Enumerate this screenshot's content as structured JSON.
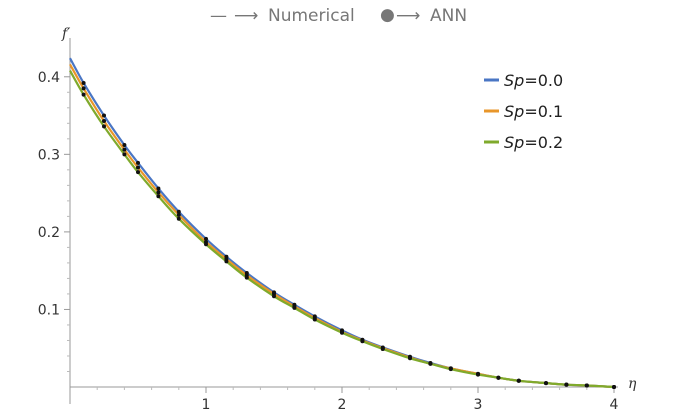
{
  "header": {
    "line_legend_label": "Numerical",
    "dot_legend_label": "ANN",
    "arrow_symbol": "⟶",
    "line_symbol": "—",
    "dot_symbol": "●"
  },
  "chart_data": {
    "type": "line",
    "xlabel": "η",
    "ylabel": "f′",
    "xlim": [
      0,
      4
    ],
    "ylim": [
      0,
      0.45
    ],
    "x_ticks": [
      1,
      2,
      3,
      4
    ],
    "y_ticks": [
      0.1,
      0.2,
      0.3,
      0.4
    ],
    "legend_position": "top-right",
    "grid": false,
    "x": [
      0,
      0.1,
      0.25,
      0.4,
      0.5,
      0.65,
      0.8,
      1.0,
      1.15,
      1.3,
      1.5,
      1.65,
      1.8,
      2.0,
      2.15,
      2.3,
      2.5,
      2.65,
      2.8,
      3.0,
      3.15,
      3.3,
      3.5,
      3.65,
      3.8,
      4.0
    ],
    "series": [
      {
        "legend_prefix": "Sp",
        "legend_suffix": "=0.0",
        "color": "#4a76c4",
        "values": [
          0.424,
          0.392,
          0.35,
          0.312,
          0.289,
          0.256,
          0.226,
          0.191,
          0.168,
          0.147,
          0.122,
          0.106,
          0.091,
          0.073,
          0.061,
          0.051,
          0.039,
          0.031,
          0.024,
          0.017,
          0.012,
          0.008,
          0.005,
          0.003,
          0.002,
          0.0
        ]
      },
      {
        "legend_prefix": "Sp",
        "legend_suffix": "=0.1",
        "color": "#e8962a",
        "values": [
          0.416,
          0.385,
          0.343,
          0.306,
          0.283,
          0.251,
          0.222,
          0.187,
          0.165,
          0.144,
          0.12,
          0.104,
          0.089,
          0.071,
          0.06,
          0.05,
          0.038,
          0.03,
          0.024,
          0.017,
          0.012,
          0.008,
          0.005,
          0.003,
          0.002,
          0.0
        ]
      },
      {
        "legend_prefix": "Sp",
        "legend_suffix": "=0.2",
        "color": "#7faa2c",
        "values": [
          0.408,
          0.377,
          0.336,
          0.3,
          0.277,
          0.246,
          0.217,
          0.184,
          0.162,
          0.141,
          0.117,
          0.102,
          0.087,
          0.07,
          0.059,
          0.049,
          0.037,
          0.03,
          0.023,
          0.016,
          0.012,
          0.008,
          0.005,
          0.003,
          0.002,
          0.0
        ]
      }
    ]
  }
}
